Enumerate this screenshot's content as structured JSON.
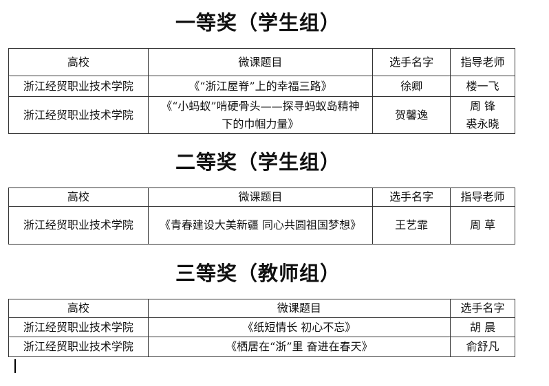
{
  "sections": [
    {
      "title": "一等奖（学生组）",
      "headers": [
        "高校",
        "微课题目",
        "选手名字",
        "指导老师"
      ],
      "rows": [
        [
          "浙江经贸职业技术学院",
          "《“浙江屋脊”上的幸福三路》",
          "徐卿",
          "楼一飞"
        ],
        [
          "浙江经贸职业技术学院",
          "《“小蚂蚁”啃硬骨头——探寻蚂蚁岛精神下的巾帼力量》",
          "贺馨逸",
          "周 锋 裘永晓"
        ]
      ]
    },
    {
      "title": "二等奖（学生组）",
      "headers": [
        "高校",
        "微课题目",
        "选手名字",
        "指导老师"
      ],
      "rows": [
        [
          "浙江经贸职业技术学院",
          "《青春建设大美新疆 同心共圆祖国梦想》",
          "王艺霏",
          "周 草"
        ]
      ]
    },
    {
      "title": "三等奖（教师组）",
      "headers": [
        "高校",
        "微课题目",
        "选手名字"
      ],
      "rows": [
        [
          "浙江经贸职业技术学院",
          "《纸短情长 初心不忘》",
          "胡 晨"
        ],
        [
          "浙江经贸职业技术学院",
          "《栖居在“浙”里 奋进在春天》",
          "俞舒凡"
        ]
      ]
    }
  ]
}
